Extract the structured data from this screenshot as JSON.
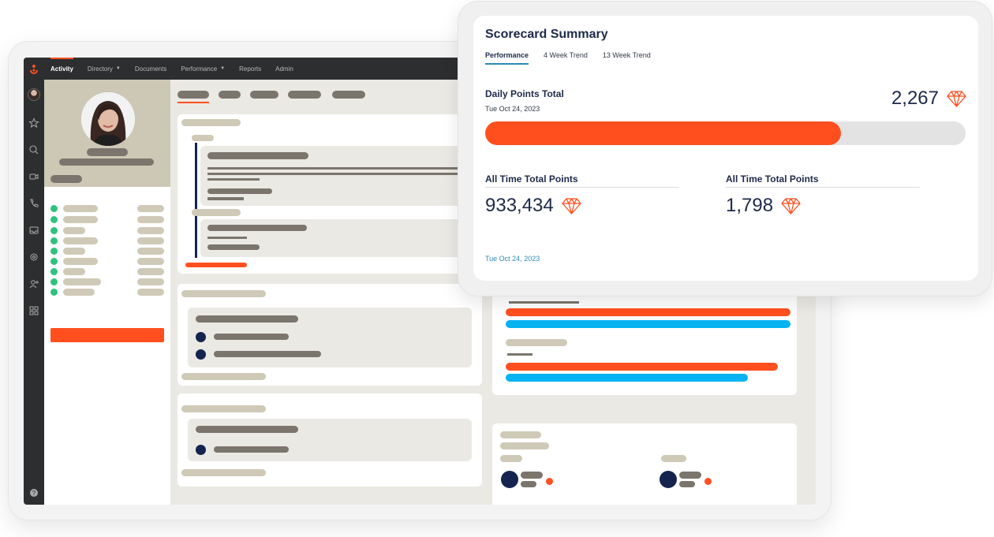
{
  "app": {
    "nav": [
      "Activity",
      "Directory",
      "Documents",
      "Performance",
      "Reports",
      "Admin"
    ],
    "nav_has_caret": [
      false,
      true,
      false,
      true,
      false,
      false
    ]
  },
  "rail": {
    "icons": [
      "star-icon",
      "search-icon",
      "video-icon",
      "phone-icon",
      "inbox-icon",
      "settings-icon",
      "add-user-icon",
      "apps-icon",
      "help-icon"
    ]
  },
  "scorecard": {
    "title": "Scorecard Summary",
    "tabs": [
      "Performance",
      "4 Week Trend",
      "13 Week Trend"
    ],
    "active_tab": "Performance",
    "daily": {
      "label": "Daily Points Total",
      "date": "Tue Oct 24, 2023",
      "value": "2,267",
      "progress": 0.74
    },
    "all_time_1": {
      "label": "All Time Total Points",
      "value": "933,434"
    },
    "all_time_2": {
      "label": "All Time Total Points",
      "value": "1,798"
    },
    "footer_date": "Tue Oct 24, 2023"
  },
  "colors": {
    "accent": "#ff4f1f",
    "navy": "#1e2a4a",
    "link": "#2e8bb8",
    "online": "#2ec27e",
    "chart_blue": "#05b3f2"
  }
}
